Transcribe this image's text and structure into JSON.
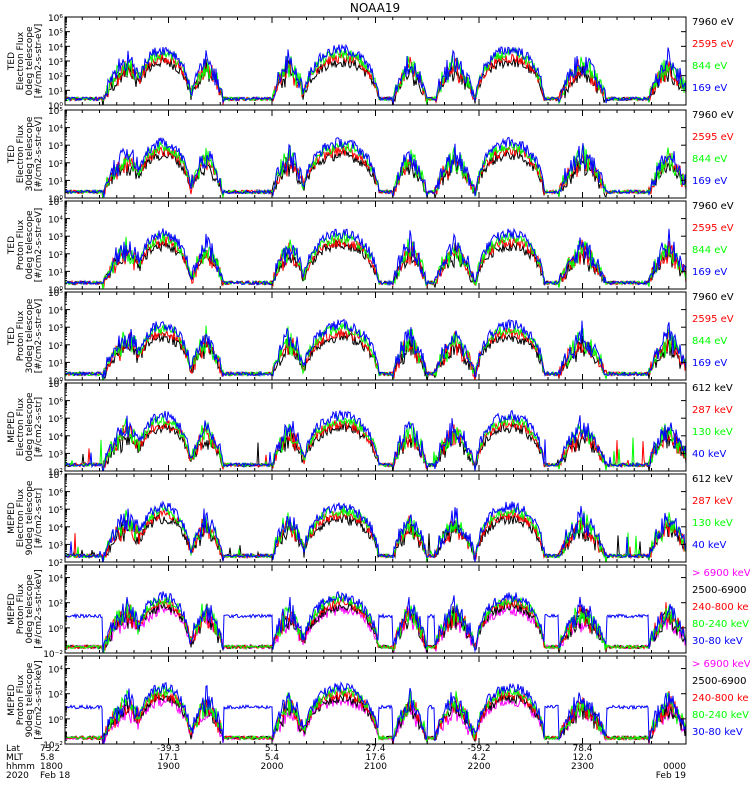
{
  "title": "NOAA19",
  "colors": {
    "black": "#000000",
    "red": "#ff0000",
    "green": "#00ff00",
    "blue": "#0000ff",
    "magenta": "#ff00ff"
  },
  "chart_data": [
    {
      "type": "line",
      "panel_id": "ted-e-0",
      "ylabel": [
        "TED",
        "Electron Flux",
        "0deg telescope",
        "[#/cm2-s-str-eV]"
      ],
      "y_log": true,
      "ylim_exp": [
        0,
        6
      ],
      "ytick_exps": [
        0,
        1,
        2,
        3,
        4,
        5,
        6
      ],
      "ytick_labels": [
        "10⁰",
        "10¹",
        "10²",
        "10³",
        "10⁴",
        "10⁵",
        "10⁶"
      ],
      "series": [
        {
          "name": "7960 eV",
          "color": "black"
        },
        {
          "name": "2595 eV",
          "color": "red"
        },
        {
          "name": "844 eV",
          "color": "green"
        },
        {
          "name": "169 eV",
          "color": "blue"
        }
      ]
    },
    {
      "type": "line",
      "panel_id": "ted-e-30",
      "ylabel": [
        "TED",
        "Electron Flux",
        "30deg telescope",
        "[#/cm2-s-str-eV]"
      ],
      "y_log": true,
      "ylim_exp": [
        0,
        5
      ],
      "ytick_exps": [
        0,
        1,
        2,
        3,
        4,
        5
      ],
      "ytick_labels": [
        "10⁰",
        "10¹",
        "10²",
        "10³",
        "10⁴",
        "10⁵"
      ],
      "series": [
        {
          "name": "7960 eV",
          "color": "black"
        },
        {
          "name": "2595 eV",
          "color": "red"
        },
        {
          "name": "844 eV",
          "color": "green"
        },
        {
          "name": "169 eV",
          "color": "blue"
        }
      ]
    },
    {
      "type": "line",
      "panel_id": "ted-p-0",
      "ylabel": [
        "TED",
        "Proton Flux",
        "0deg telescope",
        "[#/cm2-s-str-eV]"
      ],
      "y_log": true,
      "ylim_exp": [
        0,
        5
      ],
      "ytick_exps": [
        0,
        1,
        2,
        3,
        4,
        5
      ],
      "ytick_labels": [
        "10⁰",
        "10¹",
        "10²",
        "10³",
        "10⁴",
        "10⁵"
      ],
      "series": [
        {
          "name": "7960 eV",
          "color": "black"
        },
        {
          "name": "2595 eV",
          "color": "red"
        },
        {
          "name": "844 eV",
          "color": "green"
        },
        {
          "name": "169 eV",
          "color": "blue"
        }
      ]
    },
    {
      "type": "line",
      "panel_id": "ted-p-30",
      "ylabel": [
        "TED",
        "Proton Flux",
        "30deg telescope",
        "[#/cm2-s-str-eV]"
      ],
      "y_log": true,
      "ylim_exp": [
        0,
        5
      ],
      "ytick_exps": [
        0,
        1,
        2,
        3,
        4,
        5
      ],
      "ytick_labels": [
        "10⁰",
        "10¹",
        "10²",
        "10³",
        "10⁴",
        "10⁵"
      ],
      "series": [
        {
          "name": "7960 eV",
          "color": "black"
        },
        {
          "name": "2595 eV",
          "color": "red"
        },
        {
          "name": "844 eV",
          "color": "green"
        },
        {
          "name": "169 eV",
          "color": "blue"
        }
      ]
    },
    {
      "type": "line",
      "panel_id": "mepde-e-0",
      "ylabel": [
        "MEPED",
        "Electron Flux",
        "0deg telescope",
        "[#/cm2-s-str]"
      ],
      "y_log": true,
      "ylim_exp": [
        2,
        7
      ],
      "ytick_exps": [
        2,
        3,
        4,
        5,
        6,
        7
      ],
      "ytick_labels": [
        "10²",
        "10³",
        "10⁴",
        "10⁵",
        "10⁶",
        "10⁷"
      ],
      "series": [
        {
          "name": "612 keV",
          "color": "black"
        },
        {
          "name": "287 keV",
          "color": "red"
        },
        {
          "name": "130 keV",
          "color": "green"
        },
        {
          "name": "40 keV",
          "color": "blue"
        }
      ]
    },
    {
      "type": "line",
      "panel_id": "meped-e-90",
      "ylabel": [
        "MEPED",
        "Electron Flux",
        "90deg telescope",
        "[#/cm2-s-str]"
      ],
      "y_log": true,
      "ylim_exp": [
        2,
        7
      ],
      "ytick_exps": [
        2,
        3,
        4,
        5,
        6,
        7
      ],
      "ytick_labels": [
        "10²",
        "10³",
        "10⁴",
        "10⁵",
        "10⁶",
        "10⁷"
      ],
      "series": [
        {
          "name": "612 keV",
          "color": "black"
        },
        {
          "name": "287 keV",
          "color": "red"
        },
        {
          "name": "130 keV",
          "color": "green"
        },
        {
          "name": "40 keV",
          "color": "blue"
        }
      ]
    },
    {
      "type": "line",
      "panel_id": "meped-p-0",
      "ylabel": [
        "MEPED",
        "Proton Flux",
        "0deg telescope",
        "[#/cm2-s-str-keV]"
      ],
      "y_log": true,
      "ylim_exp": [
        -2,
        5
      ],
      "ytick_exps": [
        -2,
        0,
        2,
        4
      ],
      "ytick_labels": [
        "10⁻²",
        "10⁰",
        "10²",
        "10⁴"
      ],
      "series": [
        {
          "name": "> 6900 keV",
          "color": "magenta"
        },
        {
          "name": "2500-6900",
          "color": "black"
        },
        {
          "name": "240-800 ke",
          "color": "red"
        },
        {
          "name": "80-240 keV",
          "color": "green"
        },
        {
          "name": "30-80 keV",
          "color": "blue"
        }
      ]
    },
    {
      "type": "line",
      "panel_id": "meped-p-90",
      "ylabel": [
        "MEPED",
        "Proton Flux",
        "90deg telescope",
        "[#/cm2-s-str-keV]"
      ],
      "y_log": true,
      "ylim_exp": [
        -2,
        5
      ],
      "ytick_exps": [
        -2,
        0,
        2,
        4
      ],
      "ytick_labels": [
        "10⁻²",
        "10⁰",
        "10²",
        "10⁴"
      ],
      "series": [
        {
          "name": "> 6900 keV",
          "color": "magenta"
        },
        {
          "name": "2500-6900",
          "color": "black"
        },
        {
          "name": "240-800 ke",
          "color": "red"
        },
        {
          "name": "80-240 keV",
          "color": "green"
        },
        {
          "name": "30-80 keV",
          "color": "blue"
        }
      ]
    }
  ],
  "x_axis": {
    "row_labels": [
      "Lat",
      "MLT",
      "hhmm",
      "2020"
    ],
    "columns": [
      {
        "t": 0,
        "values": [
          "73.2",
          "5.8",
          "1800",
          "Feb 18"
        ]
      },
      {
        "t": 60,
        "values": [
          "-39.3",
          "17.1",
          "1900",
          ""
        ]
      },
      {
        "t": 120,
        "values": [
          "5.1",
          "5.4",
          "2000",
          ""
        ]
      },
      {
        "t": 180,
        "values": [
          "27.4",
          "17.6",
          "2100",
          ""
        ]
      },
      {
        "t": 240,
        "values": [
          "-59.2",
          "4.2",
          "2200",
          ""
        ]
      },
      {
        "t": 300,
        "values": [
          "78.4",
          "12.0",
          "2300",
          ""
        ]
      },
      {
        "t": 360,
        "values": [
          "",
          "",
          "0000",
          "Feb 19"
        ]
      }
    ],
    "range_minutes": [
      0,
      360
    ]
  }
}
